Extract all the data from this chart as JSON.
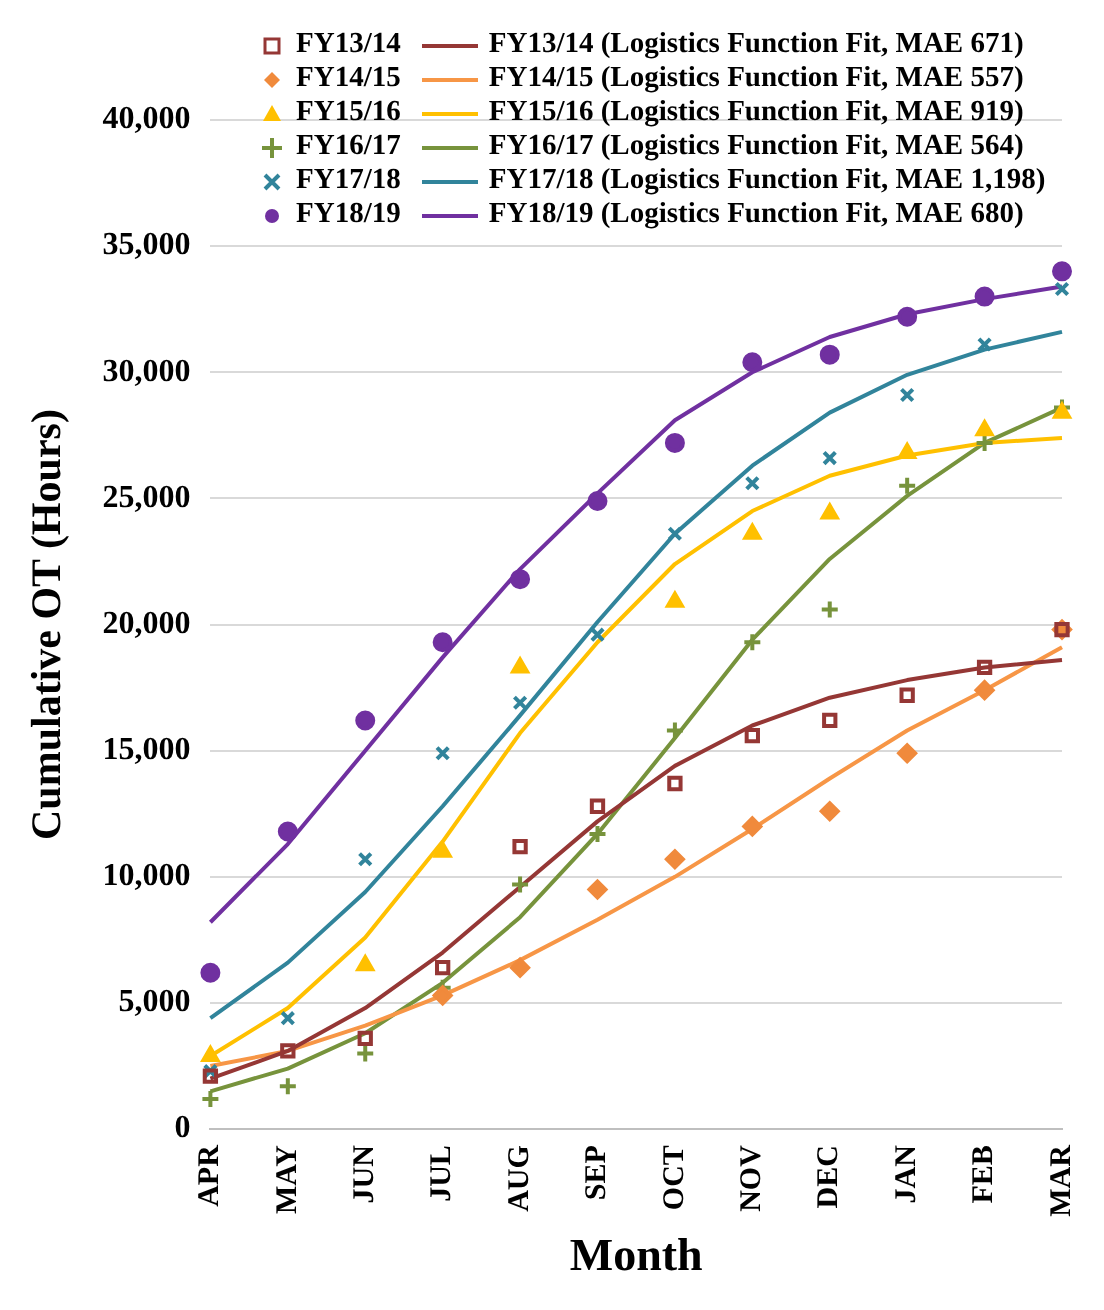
{
  "chart_data": {
    "type": "line",
    "xlabel": "Month",
    "ylabel": "Cumulative OT (Hours)",
    "categories": [
      "APR",
      "MAY",
      "JUN",
      "JUL",
      "AUG",
      "SEP",
      "OCT",
      "NOV",
      "DEC",
      "JAN",
      "FEB",
      "MAR"
    ],
    "ylim": [
      0,
      40000
    ],
    "yticks": [
      {
        "value": 0,
        "label": "0"
      },
      {
        "value": 5000,
        "label": "5,000"
      },
      {
        "value": 10000,
        "label": "10,000"
      },
      {
        "value": 15000,
        "label": "15,000"
      },
      {
        "value": 20000,
        "label": "20,000"
      },
      {
        "value": 25000,
        "label": "25,000"
      },
      {
        "value": 30000,
        "label": "30,000"
      },
      {
        "value": 35000,
        "label": "35,000"
      },
      {
        "value": 40000,
        "label": "40,000"
      }
    ],
    "grid": "y",
    "legend": "top",
    "series": [
      {
        "name": "FY13/14",
        "type": "scatter",
        "marker": "square",
        "color": "#953735",
        "values": [
          2100,
          3100,
          3600,
          6400,
          11200,
          12800,
          13700,
          15600,
          16200,
          17200,
          18300,
          19800
        ]
      },
      {
        "name": "FY13/14 (Logistics Function Fit, MAE 671)",
        "type": "line",
        "marker": "none",
        "color": "#953735",
        "values": [
          2000,
          3100,
          4800,
          7000,
          9600,
          12200,
          14400,
          16000,
          17100,
          17800,
          18300,
          18600
        ]
      },
      {
        "name": "FY14/15",
        "type": "scatter",
        "marker": "diamond",
        "color": "#f08a3c",
        "values": [
          null,
          null,
          null,
          5300,
          6400,
          9500,
          10700,
          12000,
          12600,
          14900,
          17400,
          19800
        ]
      },
      {
        "name": "FY14/15 (Logistics Function Fit, MAE 557)",
        "type": "line",
        "marker": "none",
        "color": "#f79646",
        "values": [
          2500,
          3100,
          4100,
          5300,
          6700,
          8300,
          10000,
          11900,
          13900,
          15800,
          17400,
          19100
        ]
      },
      {
        "name": "FY15/16",
        "type": "scatter",
        "marker": "triangle",
        "color": "#ffc000",
        "values": [
          2900,
          null,
          6500,
          11000,
          18300,
          null,
          20900,
          23600,
          24400,
          26800,
          27700,
          28400
        ]
      },
      {
        "name": "FY15/16 (Logistics Function Fit, MAE 919)",
        "type": "line",
        "marker": "none",
        "color": "#ffc000",
        "values": [
          2900,
          4800,
          7600,
          11400,
          15700,
          19300,
          22400,
          24500,
          25900,
          26700,
          27200,
          27400
        ]
      },
      {
        "name": "FY16/17",
        "type": "scatter",
        "marker": "cross",
        "color": "#77933c",
        "values": [
          1200,
          1700,
          3000,
          5600,
          9700,
          11700,
          15800,
          19300,
          20600,
          25500,
          27200,
          28600
        ]
      },
      {
        "name": "FY16/17 (Logistics Function Fit, MAE 564)",
        "type": "line",
        "marker": "none",
        "color": "#77933c",
        "values": [
          1500,
          2400,
          3800,
          5800,
          8400,
          11700,
          15500,
          19400,
          22600,
          25100,
          27200,
          28600
        ]
      },
      {
        "name": "FY17/18",
        "type": "scatter",
        "marker": "x",
        "color": "#31849b",
        "values": [
          2300,
          4400,
          10700,
          14900,
          16900,
          19600,
          23600,
          25600,
          26600,
          29100,
          31100,
          33300
        ]
      },
      {
        "name": "FY17/18 (Logistics Function Fit, MAE 1,198)",
        "type": "line",
        "marker": "none",
        "color": "#31849b",
        "values": [
          4400,
          6600,
          9400,
          12800,
          16400,
          20100,
          23600,
          26300,
          28400,
          29900,
          30900,
          31600
        ]
      },
      {
        "name": "FY18/19",
        "type": "scatter",
        "marker": "circle",
        "color": "#7030a0",
        "values": [
          6200,
          11800,
          16200,
          19300,
          21800,
          24900,
          27200,
          30400,
          30700,
          32200,
          33000,
          34000
        ]
      },
      {
        "name": "FY18/19 (Logistics Function Fit, MAE 680)",
        "type": "line",
        "marker": "none",
        "color": "#7030a0",
        "values": [
          8200,
          11300,
          15000,
          18700,
          22200,
          25200,
          28100,
          30000,
          31400,
          32300,
          32900,
          33400
        ]
      }
    ]
  }
}
